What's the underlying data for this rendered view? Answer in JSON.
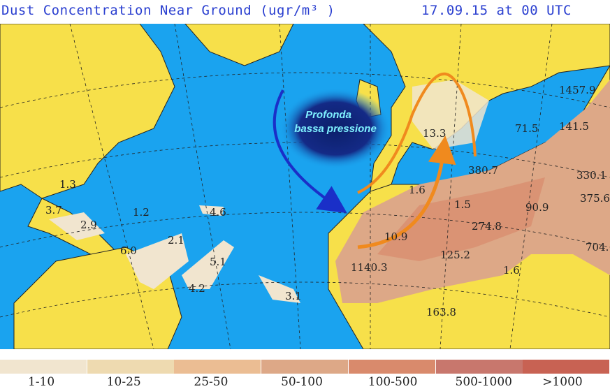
{
  "header": {
    "title": "Dust Concentration Near Ground (ugr/m³ )",
    "datetime": "17.09.15 at 00 UTC"
  },
  "annotation": {
    "line1": "Profonda",
    "line2": "bassa pressione"
  },
  "colors": {
    "ocean": "#1aa3ef",
    "land": "#f7e04a",
    "arrow_blue": "#1a2fc8",
    "arrow_orange": "#f08a1e",
    "low": "#0b1f6a"
  },
  "map_labels": [
    "1.3",
    "3.7",
    "2.9",
    "1.2",
    "4.6",
    "2.1",
    "6.0",
    "5.1",
    "4.2",
    "3.1",
    "1.6",
    "1.5",
    "10.9",
    "1140.3",
    "125.2",
    "274.8",
    "90.9",
    "380.7",
    "13.3",
    "71.5",
    "141.5",
    "1457.9",
    "330.1",
    "375.6",
    "704.",
    "1.6",
    "163.8"
  ],
  "legend": [
    {
      "label": "1-10",
      "color": "#f1e5cf"
    },
    {
      "label": "10-25",
      "color": "#eedab0"
    },
    {
      "label": "25-50",
      "color": "#ebbd93"
    },
    {
      "label": "50-100",
      "color": "#dda887"
    },
    {
      "label": "100-500",
      "color": "#d98a6c"
    },
    {
      "label": "500-1000",
      "color": "#c8776d"
    },
    {
      "label": ">1000",
      "color": "#c86253"
    }
  ]
}
